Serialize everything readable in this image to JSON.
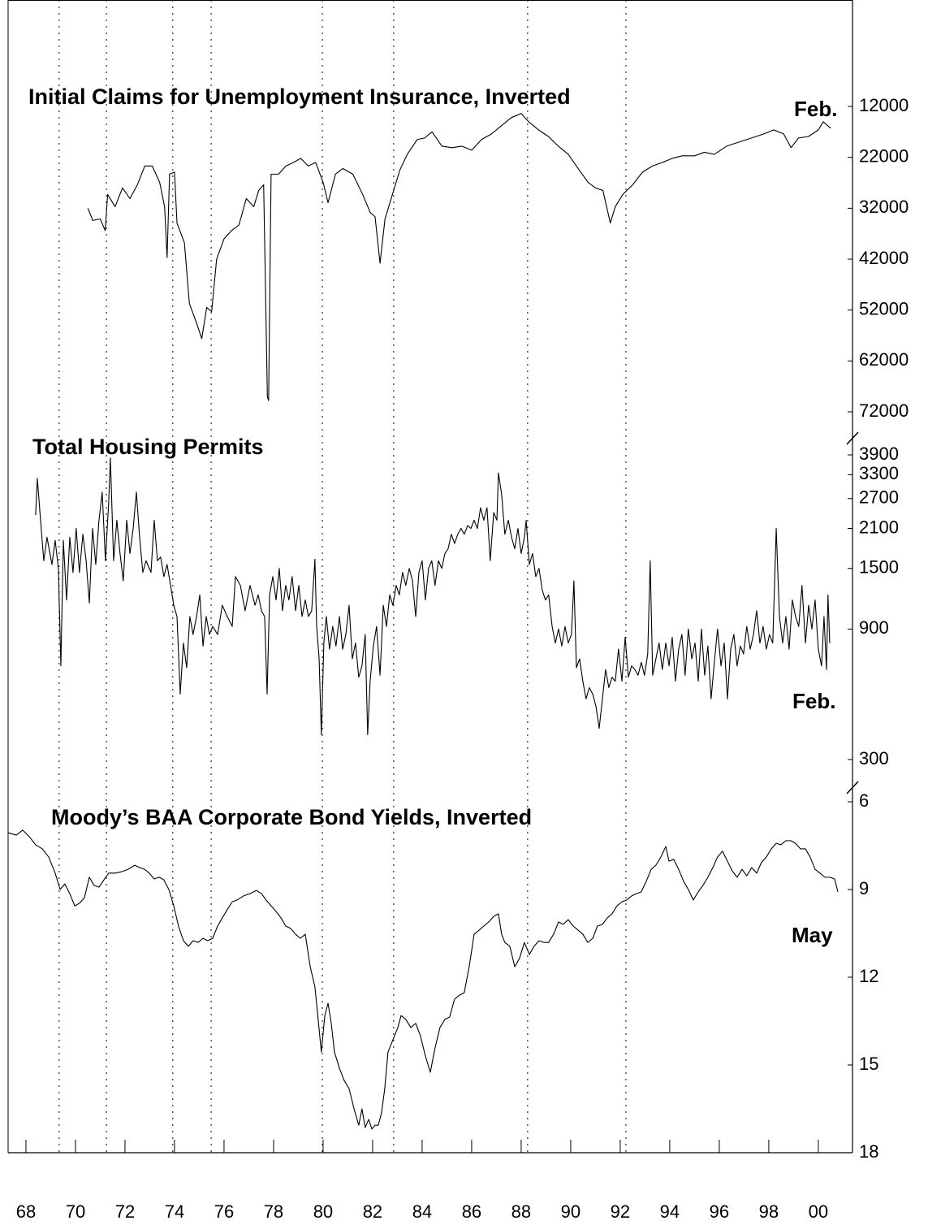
{
  "chart_data": [
    {
      "type": "line",
      "title": "Initial Claims for Unemployment Insurance, Inverted",
      "end_label": "Feb.",
      "color": "#000000",
      "invert_y": true,
      "xlim": [
        1967.28,
        2001.38
      ],
      "ylim": [
        10000,
        72000
      ],
      "yticks": [
        12000,
        22000,
        32000,
        42000,
        52000,
        62000,
        72000
      ],
      "x": [
        1970.5,
        1970.7,
        1971.0,
        1971.2,
        1971.3,
        1971.6,
        1971.9,
        1972.2,
        1972.5,
        1972.8,
        1973.1,
        1973.4,
        1973.6,
        1973.7,
        1973.8,
        1974.0,
        1974.1,
        1974.4,
        1974.6,
        1974.9,
        1975.1,
        1975.3,
        1975.5,
        1975.7,
        1976.0,
        1976.3,
        1976.6,
        1976.9,
        1977.2,
        1977.4,
        1977.6,
        1977.75,
        1977.8,
        1977.9,
        1978.2,
        1978.5,
        1978.8,
        1979.1,
        1979.4,
        1979.7,
        1980.0,
        1980.2,
        1980.5,
        1980.8,
        1981.2,
        1981.6,
        1981.9,
        1982.1,
        1982.3,
        1982.5,
        1982.8,
        1983.1,
        1983.4,
        1983.8,
        1984.1,
        1984.4,
        1984.8,
        1985.2,
        1985.6,
        1986.0,
        1986.4,
        1986.8,
        1987.2,
        1987.6,
        1988.0,
        1988.3,
        1988.7,
        1989.1,
        1989.5,
        1989.9,
        1990.3,
        1990.7,
        1991.0,
        1991.3,
        1991.6,
        1991.8,
        1992.1,
        1992.5,
        1992.9,
        1993.3,
        1993.7,
        1994.1,
        1994.5,
        1995.0,
        1995.4,
        1995.8,
        1996.3,
        1996.8,
        1997.3,
        1997.8,
        1998.2,
        1998.6,
        1998.9,
        1999.2,
        1999.6,
        2000.0,
        2000.2,
        2000.5
      ],
      "values": [
        32000,
        34400,
        34100,
        36400,
        29300,
        31700,
        28000,
        30100,
        27400,
        23700,
        23700,
        26900,
        31700,
        41700,
        25300,
        24900,
        34900,
        38800,
        50700,
        54700,
        57600,
        51500,
        52300,
        42000,
        38000,
        36400,
        35300,
        30100,
        31700,
        28500,
        27400,
        69000,
        69800,
        25300,
        25300,
        23700,
        23000,
        22200,
        23700,
        23000,
        26900,
        30900,
        25300,
        24200,
        25300,
        29300,
        32800,
        33700,
        42800,
        34100,
        29300,
        24500,
        21400,
        18500,
        18200,
        17000,
        19800,
        20100,
        19800,
        20600,
        18500,
        17400,
        15800,
        14200,
        13400,
        15000,
        16600,
        17900,
        19800,
        21400,
        24200,
        26900,
        28000,
        28500,
        34900,
        31700,
        29300,
        27400,
        24900,
        23700,
        23000,
        22200,
        21700,
        21700,
        21000,
        21400,
        19800,
        19000,
        18200,
        17400,
        16600,
        17400,
        20100,
        18200,
        17900,
        16600,
        15000,
        16300
      ]
    },
    {
      "type": "line",
      "title": "Total Housing Permits",
      "end_label": "Feb.",
      "color": "#000000",
      "log_y": true,
      "xlim": [
        1967.28,
        2001.38
      ],
      "ylim": [
        300,
        3900
      ],
      "yticks": [
        3900,
        3300,
        2700,
        2100,
        1500,
        900,
        300
      ],
      "x": [
        1968.39,
        1968.46,
        1968.59,
        1968.72,
        1968.85,
        1969.05,
        1969.18,
        1969.31,
        1969.41,
        1969.51,
        1969.64,
        1969.77,
        1969.9,
        1970.03,
        1970.16,
        1970.3,
        1970.43,
        1970.56,
        1970.69,
        1970.82,
        1970.95,
        1971.08,
        1971.21,
        1971.34,
        1971.41,
        1971.54,
        1971.67,
        1971.8,
        1971.93,
        1972.07,
        1972.2,
        1972.33,
        1972.46,
        1972.59,
        1972.72,
        1972.85,
        1973.05,
        1973.18,
        1973.31,
        1973.44,
        1973.57,
        1973.7,
        1973.84,
        1973.97,
        1974.1,
        1974.23,
        1974.36,
        1974.49,
        1974.62,
        1974.75,
        1974.89,
        1975.02,
        1975.15,
        1975.28,
        1975.41,
        1975.54,
        1975.74,
        1975.93,
        1976.13,
        1976.33,
        1976.46,
        1976.66,
        1976.85,
        1977.05,
        1977.25,
        1977.38,
        1977.51,
        1977.64,
        1977.74,
        1977.84,
        1977.97,
        1978.1,
        1978.23,
        1978.36,
        1978.49,
        1978.62,
        1978.75,
        1978.89,
        1979.02,
        1979.15,
        1979.28,
        1979.41,
        1979.54,
        1979.67,
        1979.74,
        1979.84,
        1979.93,
        1980.03,
        1980.13,
        1980.26,
        1980.39,
        1980.52,
        1980.66,
        1980.79,
        1980.92,
        1981.05,
        1981.18,
        1981.31,
        1981.44,
        1981.57,
        1981.7,
        1981.8,
        1981.9,
        1982.03,
        1982.16,
        1982.3,
        1982.43,
        1982.56,
        1982.69,
        1982.82,
        1982.95,
        1983.08,
        1983.21,
        1983.34,
        1983.48,
        1983.61,
        1983.74,
        1983.87,
        1984.0,
        1984.13,
        1984.26,
        1984.39,
        1984.52,
        1984.66,
        1984.79,
        1984.92,
        1985.05,
        1985.18,
        1985.31,
        1985.44,
        1985.57,
        1985.7,
        1985.84,
        1985.97,
        1986.1,
        1986.23,
        1986.36,
        1986.49,
        1986.62,
        1986.75,
        1986.89,
        1987.02,
        1987.08,
        1987.21,
        1987.34,
        1987.48,
        1987.61,
        1987.74,
        1987.87,
        1988.0,
        1988.13,
        1988.2,
        1988.33,
        1988.46,
        1988.59,
        1988.72,
        1988.85,
        1988.98,
        1989.11,
        1989.25,
        1989.38,
        1989.51,
        1989.64,
        1989.77,
        1989.9,
        1990.03,
        1990.13,
        1990.23,
        1990.36,
        1990.49,
        1990.62,
        1990.75,
        1990.89,
        1991.02,
        1991.15,
        1991.28,
        1991.41,
        1991.54,
        1991.67,
        1991.8,
        1991.93,
        1992.07,
        1992.2,
        1992.33,
        1992.46,
        1992.59,
        1992.72,
        1992.85,
        1992.98,
        1993.11,
        1993.21,
        1993.31,
        1993.44,
        1993.57,
        1993.7,
        1993.84,
        1993.97,
        1994.1,
        1994.23,
        1994.36,
        1994.49,
        1994.62,
        1994.75,
        1994.89,
        1995.02,
        1995.15,
        1995.28,
        1995.41,
        1995.54,
        1995.67,
        1995.8,
        1995.93,
        1996.07,
        1996.2,
        1996.33,
        1996.46,
        1996.59,
        1996.72,
        1996.85,
        1996.98,
        1997.11,
        1997.25,
        1997.38,
        1997.51,
        1997.64,
        1997.77,
        1997.9,
        1998.03,
        1998.16,
        1998.3,
        1998.43,
        1998.56,
        1998.69,
        1998.82,
        1998.95,
        1999.08,
        1999.21,
        1999.34,
        1999.48,
        1999.61,
        1999.74,
        1999.87,
        2000.0,
        2000.13,
        2000.23,
        2000.33,
        2000.39,
        2000.46
      ],
      "values": [
        2350,
        3200,
        2250,
        1600,
        1950,
        1550,
        1900,
        1500,
        660,
        1900,
        1150,
        1950,
        1450,
        2100,
        1450,
        2000,
        1600,
        1120,
        2100,
        1550,
        2250,
        2850,
        1600,
        2600,
        3800,
        1600,
        2250,
        1700,
        1350,
        2250,
        1700,
        2100,
        2850,
        1950,
        1450,
        1600,
        1450,
        2250,
        1600,
        1650,
        1400,
        1550,
        1300,
        1100,
        1000,
        520,
        800,
        650,
        1000,
        860,
        1000,
        1200,
        780,
        1000,
        860,
        920,
        860,
        1100,
        1000,
        920,
        1400,
        1300,
        1050,
        1300,
        1100,
        1200,
        1050,
        1000,
        520,
        1200,
        1400,
        1150,
        1500,
        1050,
        1300,
        1150,
        1400,
        1050,
        1300,
        1000,
        1150,
        1000,
        1050,
        1620,
        920,
        700,
        370,
        800,
        1000,
        760,
        920,
        780,
        1000,
        760,
        860,
        1100,
        700,
        800,
        600,
        660,
        860,
        370,
        580,
        780,
        920,
        610,
        1100,
        920,
        1200,
        1100,
        1300,
        1200,
        1450,
        1300,
        1500,
        1350,
        1000,
        1450,
        1600,
        1150,
        1500,
        1600,
        1300,
        1600,
        1500,
        1700,
        1770,
        2000,
        1850,
        2000,
        2100,
        2000,
        2150,
        2100,
        2250,
        2100,
        2500,
        2250,
        2500,
        1600,
        2400,
        2250,
        3350,
        2800,
        2000,
        2250,
        1950,
        1770,
        2100,
        1700,
        1950,
        2250,
        1550,
        1700,
        1400,
        1500,
        1250,
        1150,
        1200,
        920,
        800,
        900,
        780,
        920,
        800,
        860,
        1350,
        650,
        700,
        580,
        500,
        550,
        520,
        470,
        390,
        500,
        640,
        550,
        600,
        580,
        760,
        580,
        840,
        600,
        660,
        640,
        610,
        680,
        610,
        730,
        1600,
        610,
        700,
        800,
        640,
        800,
        660,
        840,
        580,
        760,
        860,
        610,
        900,
        700,
        800,
        580,
        900,
        610,
        780,
        500,
        680,
        900,
        660,
        800,
        500,
        760,
        860,
        660,
        780,
        730,
        920,
        760,
        860,
        1050,
        800,
        920,
        760,
        860,
        800,
        2100,
        1000,
        800,
        1000,
        760,
        1150,
        1000,
        920,
        1300,
        800,
        1100,
        900,
        1150,
        760,
        660,
        1000,
        640,
        1200,
        800
      ]
    },
    {
      "type": "line",
      "title": "Moody’s BAA Corporate Bond Yields, Inverted",
      "end_label": "May",
      "color": "#000000",
      "invert_y": true,
      "xlim": [
        1967.28,
        2001.38
      ],
      "ylim": [
        6,
        18
      ],
      "yticks": [
        6,
        9,
        12,
        15,
        18
      ],
      "xticks": [
        {
          "value": 1968,
          "label": "68"
        },
        {
          "value": 1970,
          "label": "70"
        },
        {
          "value": 1972,
          "label": "72"
        },
        {
          "value": 1974,
          "label": "74"
        },
        {
          "value": 1976,
          "label": "76"
        },
        {
          "value": 1978,
          "label": "78"
        },
        {
          "value": 1980,
          "label": "80"
        },
        {
          "value": 1982,
          "label": "82"
        },
        {
          "value": 1984,
          "label": "84"
        },
        {
          "value": 1986,
          "label": "86"
        },
        {
          "value": 1988,
          "label": "88"
        },
        {
          "value": 1990,
          "label": "90"
        },
        {
          "value": 1992,
          "label": "92"
        },
        {
          "value": 1994,
          "label": "94"
        },
        {
          "value": 1996,
          "label": "96"
        },
        {
          "value": 1998,
          "label": "98"
        },
        {
          "value": 2000,
          "label": "00"
        }
      ],
      "reference_lines": [
        1969.34,
        1971.25,
        1973.93,
        1975.48,
        1979.97,
        1982.85,
        1988.26,
        1992.23
      ],
      "x": [
        1967.28,
        1967.61,
        1967.87,
        1968.13,
        1968.39,
        1968.66,
        1968.92,
        1969.18,
        1969.38,
        1969.57,
        1969.77,
        1969.97,
        1970.16,
        1970.36,
        1970.56,
        1970.75,
        1970.95,
        1971.15,
        1971.34,
        1971.61,
        1971.87,
        1972.13,
        1972.39,
        1972.59,
        1972.79,
        1972.98,
        1973.18,
        1973.38,
        1973.57,
        1973.77,
        1973.97,
        1974.16,
        1974.36,
        1974.56,
        1974.75,
        1974.95,
        1975.15,
        1975.34,
        1975.54,
        1975.74,
        1975.93,
        1976.13,
        1976.33,
        1976.52,
        1976.79,
        1977.05,
        1977.31,
        1977.51,
        1977.7,
        1977.9,
        1978.1,
        1978.3,
        1978.49,
        1978.69,
        1978.89,
        1979.08,
        1979.28,
        1979.48,
        1979.67,
        1979.8,
        1979.93,
        1980.07,
        1980.2,
        1980.33,
        1980.46,
        1980.66,
        1980.85,
        1981.05,
        1981.25,
        1981.44,
        1981.57,
        1981.7,
        1981.84,
        1981.97,
        1982.1,
        1982.23,
        1982.36,
        1982.49,
        1982.62,
        1982.82,
        1983.02,
        1983.15,
        1983.34,
        1983.54,
        1983.74,
        1983.93,
        1984.13,
        1984.33,
        1984.52,
        1984.72,
        1984.92,
        1985.11,
        1985.31,
        1985.51,
        1985.7,
        1985.9,
        1986.1,
        1986.3,
        1986.49,
        1986.69,
        1986.89,
        1987.08,
        1987.21,
        1987.34,
        1987.54,
        1987.74,
        1987.93,
        1988.13,
        1988.33,
        1988.52,
        1988.72,
        1988.92,
        1989.11,
        1989.31,
        1989.51,
        1989.7,
        1989.9,
        1990.1,
        1990.3,
        1990.49,
        1990.69,
        1990.89,
        1991.08,
        1991.28,
        1991.48,
        1991.67,
        1991.87,
        1992.07,
        1992.26,
        1992.46,
        1992.66,
        1992.85,
        1993.05,
        1993.25,
        1993.44,
        1993.64,
        1993.84,
        1993.97,
        1994.16,
        1994.36,
        1994.56,
        1994.75,
        1994.95,
        1995.15,
        1995.34,
        1995.54,
        1995.74,
        1995.93,
        1996.13,
        1996.33,
        1996.52,
        1996.72,
        1996.92,
        1997.11,
        1997.31,
        1997.51,
        1997.7,
        1997.9,
        1998.1,
        1998.3,
        1998.49,
        1998.69,
        1998.89,
        1999.08,
        1999.28,
        1999.48,
        1999.67,
        1999.87,
        2000.07,
        2000.26,
        2000.46,
        2000.66,
        2000.79
      ],
      "values": [
        7.06,
        7.14,
        6.97,
        7.19,
        7.47,
        7.61,
        7.89,
        8.44,
        9.0,
        8.81,
        9.14,
        9.56,
        9.47,
        9.28,
        8.58,
        8.86,
        8.92,
        8.67,
        8.44,
        8.44,
        8.39,
        8.31,
        8.17,
        8.25,
        8.31,
        8.44,
        8.64,
        8.58,
        8.67,
        9.0,
        9.56,
        10.25,
        10.75,
        10.94,
        10.75,
        10.81,
        10.67,
        10.75,
        10.67,
        10.25,
        9.97,
        9.69,
        9.42,
        9.36,
        9.22,
        9.14,
        9.03,
        9.14,
        9.36,
        9.56,
        9.75,
        9.97,
        10.25,
        10.33,
        10.53,
        10.67,
        10.53,
        11.64,
        12.33,
        13.44,
        14.56,
        13.31,
        12.89,
        13.58,
        14.56,
        15.11,
        15.53,
        15.81,
        16.5,
        17.06,
        16.5,
        17.14,
        16.86,
        17.19,
        17.06,
        17.06,
        16.64,
        15.81,
        14.56,
        14.14,
        13.72,
        13.31,
        13.44,
        13.72,
        13.58,
        14.0,
        14.69,
        15.25,
        14.42,
        13.72,
        13.44,
        13.36,
        12.75,
        12.61,
        12.53,
        11.64,
        10.53,
        10.39,
        10.25,
        10.11,
        9.92,
        9.83,
        10.53,
        10.81,
        10.94,
        11.64,
        11.36,
        10.81,
        11.22,
        10.94,
        10.75,
        10.81,
        10.81,
        10.53,
        10.11,
        10.19,
        10.03,
        10.25,
        10.39,
        10.53,
        10.81,
        10.67,
        10.25,
        10.19,
        9.97,
        9.83,
        9.56,
        9.42,
        9.36,
        9.22,
        9.14,
        9.08,
        8.72,
        8.31,
        8.17,
        7.89,
        7.53,
        8.03,
        7.97,
        8.31,
        8.72,
        9.0,
        9.36,
        9.08,
        8.86,
        8.58,
        8.25,
        7.89,
        7.69,
        8.03,
        8.36,
        8.58,
        8.31,
        8.53,
        8.25,
        8.44,
        8.08,
        7.89,
        7.61,
        7.42,
        7.47,
        7.33,
        7.33,
        7.42,
        7.61,
        7.61,
        7.89,
        8.31,
        8.44,
        8.58,
        8.58,
        8.64,
        9.08
      ]
    }
  ]
}
